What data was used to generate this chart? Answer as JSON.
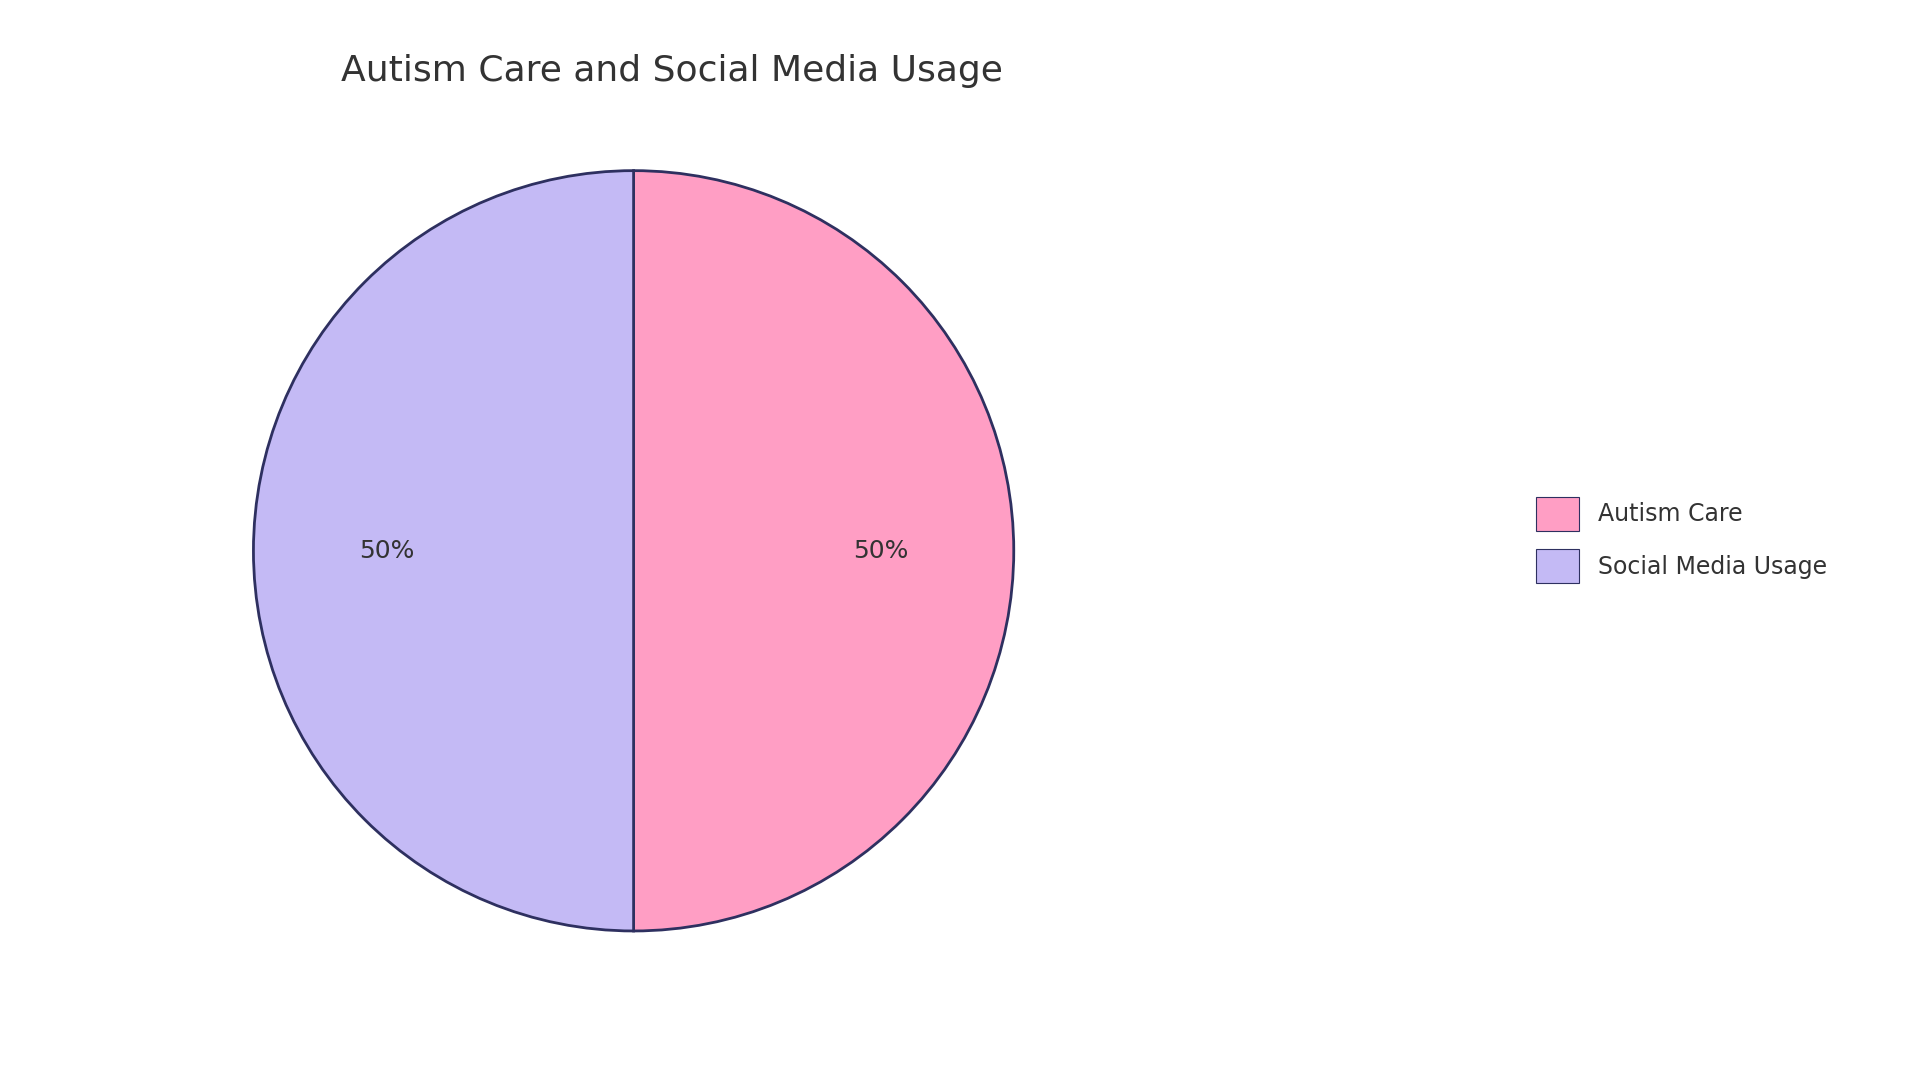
{
  "title": "Autism Care and Social Media Usage",
  "labels": [
    "Autism Care",
    "Social Media Usage"
  ],
  "values": [
    50,
    50
  ],
  "colors": [
    "#FF9EC4",
    "#C4BAF5"
  ],
  "edge_color": "#2E3060",
  "edge_width": 2.0,
  "autopct_fontsize": 18,
  "title_fontsize": 26,
  "legend_fontsize": 17,
  "startangle": 90,
  "background_color": "#FFFFFF",
  "text_color": "#333333",
  "pctdistance": 0.65
}
